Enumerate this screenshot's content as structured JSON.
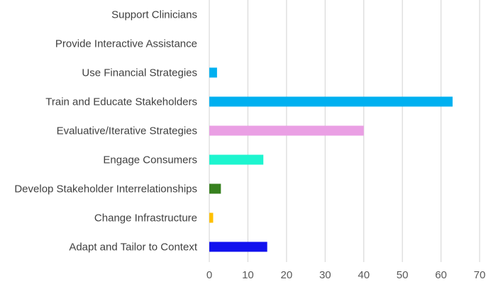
{
  "chart_data": {
    "type": "bar",
    "orientation": "horizontal",
    "title": "",
    "xlabel": "",
    "ylabel": "",
    "categories": [
      "Support Clinicians",
      "Provide Interactive Assistance",
      "Use Financial Strategies",
      "Train and Educate Stakeholders",
      "Evaluative/Iterative Strategies",
      "Engage Consumers",
      "Develop Stakeholder Interrelationships",
      "Change Infrastructure",
      "Adapt and Tailor to Context"
    ],
    "values": [
      0,
      0,
      2,
      63,
      40,
      14,
      3,
      1,
      15
    ],
    "colors": [
      "#00b0f0",
      "#00b0f0",
      "#00b0f0",
      "#00b0f0",
      "#ea9fe4",
      "#1df5cf",
      "#37811f",
      "#ffc000",
      "#1111ee"
    ],
    "xlim": [
      0,
      70
    ],
    "xticks": [
      0,
      10,
      20,
      30,
      40,
      50,
      60,
      70
    ],
    "grid": "vertical",
    "legend": "none"
  }
}
